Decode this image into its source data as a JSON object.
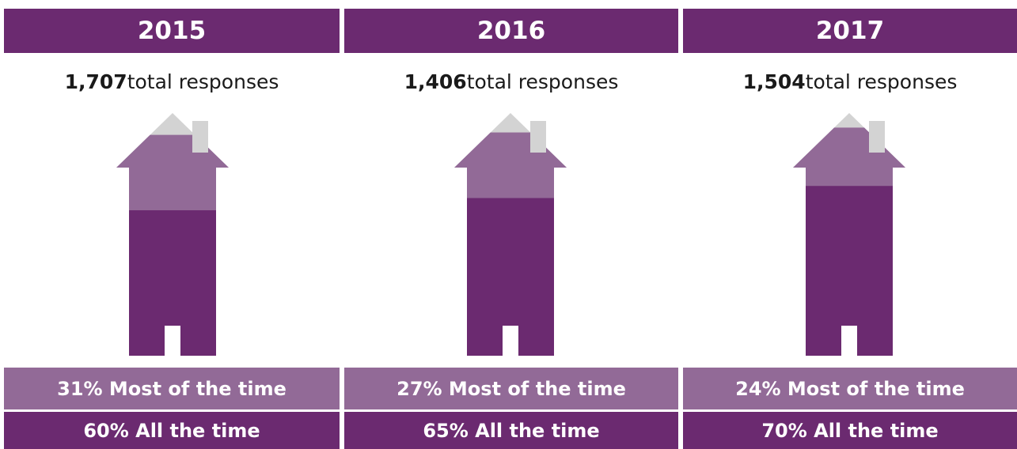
{
  "colors": {
    "all_the_time": "#6b2a70",
    "most_of_the_time": "#926a97",
    "remainder": "#d3d3d3"
  },
  "chart_data": {
    "type": "bar",
    "categories": [
      "2015",
      "2016",
      "2017"
    ],
    "totals": [
      {
        "value": "1,707",
        "suffix": " total responses"
      },
      {
        "value": "1,406",
        "suffix": " total responses"
      },
      {
        "value": "1,504",
        "suffix": " total responses"
      }
    ],
    "series": [
      {
        "name": "All the time",
        "values": [
          60,
          65,
          70
        ]
      },
      {
        "name": "Most of the time",
        "values": [
          31,
          27,
          24
        ]
      }
    ],
    "labels": {
      "most": [
        "31% Most of the time",
        "27% Most of the time",
        "24% Most of the time"
      ],
      "all": [
        "60% All the time",
        "65% All the time",
        "70% All the time"
      ]
    },
    "ylim": [
      0,
      100
    ]
  }
}
